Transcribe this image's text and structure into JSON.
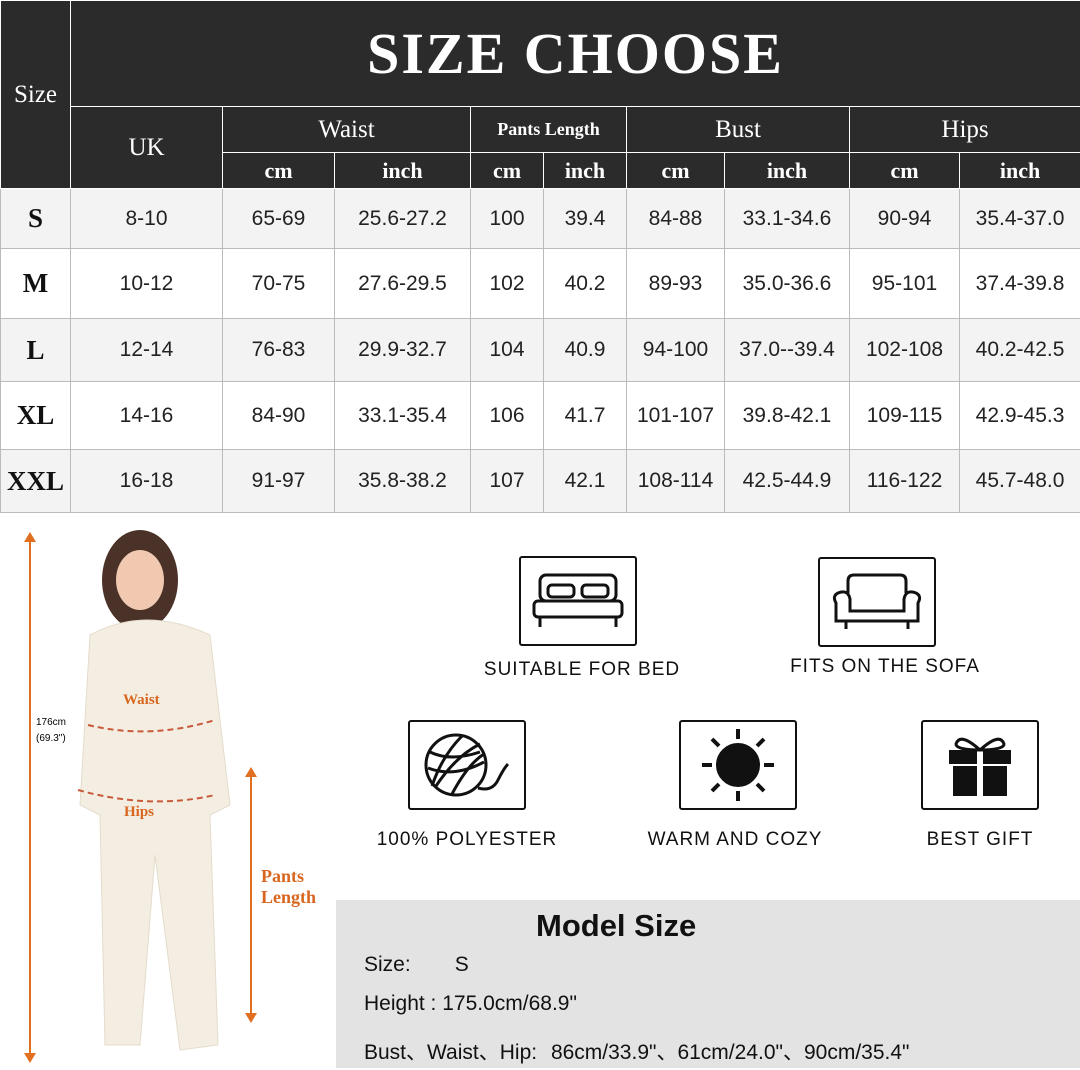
{
  "title": "SIZE CHOOSE",
  "headers": {
    "size": "Size",
    "uk": "UK",
    "waist": "Waist",
    "pants_length": "Pants Length",
    "bust": "Bust",
    "hips": "Hips",
    "cm": "cm",
    "inch": "inch"
  },
  "rows": [
    [
      "S",
      "8-10",
      "65-69",
      "25.6-27.2",
      "100",
      "39.4",
      "84-88",
      "33.1-34.6",
      "90-94",
      "35.4-37.0"
    ],
    [
      "M",
      "10-12",
      "70-75",
      "27.6-29.5",
      "102",
      "40.2",
      "89-93",
      "35.0-36.6",
      "95-101",
      "37.4-39.8"
    ],
    [
      "L",
      "12-14",
      "76-83",
      "29.9-32.7",
      "104",
      "40.9",
      "94-100",
      "37.0--39.4",
      "102-108",
      "40.2-42.5"
    ],
    [
      "XL",
      "14-16",
      "84-90",
      "33.1-35.4",
      "106",
      "41.7",
      "101-107",
      "39.8-42.1",
      "109-115",
      "42.9-45.3"
    ],
    [
      "XXL",
      "16-18",
      "91-97",
      "35.8-38.2",
      "107",
      "42.1",
      "108-114",
      "42.5-44.9",
      "116-122",
      "45.7-48.0"
    ]
  ],
  "figure": {
    "height": "176cm",
    "height_inch": "(69.3\")",
    "waist": "Waist",
    "hips": "Hips",
    "pants1": "Pants",
    "pants2": "Length",
    "accent": "#e07020"
  },
  "features": [
    {
      "icon": "bed-icon",
      "label": "SUITABLE FOR BED"
    },
    {
      "icon": "sofa-icon",
      "label": "FITS ON THE SOFA"
    },
    {
      "icon": "yarn-ball-icon",
      "label": "100% POLYESTER"
    },
    {
      "icon": "sun-icon",
      "label": "WARM AND COZY"
    },
    {
      "icon": "gift-icon",
      "label": "BEST GIFT"
    }
  ],
  "model": {
    "title": "Model Size",
    "size_label": "Size:",
    "size": "S",
    "height_label": "Height :",
    "height": "175.0cm/68.9\"",
    "bwh_label": "Bust、Waist、Hip:",
    "bwh": "86cm/33.9\"、61cm/24.0\"、90cm/35.4\""
  }
}
